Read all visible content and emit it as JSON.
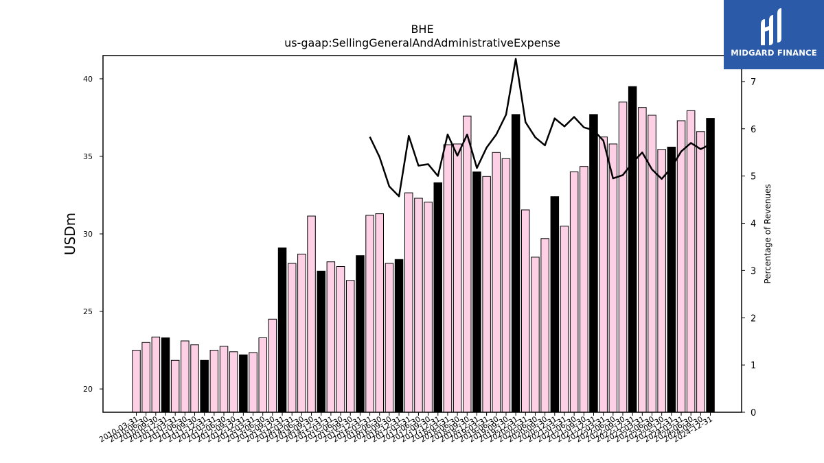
{
  "logo": {
    "text": "MIDGARD FINANCE",
    "icon": "midgard-m-logo-icon",
    "background": "#2b5aa8"
  },
  "chart_data": {
    "type": "bar",
    "title": "BHE",
    "subtitle": "us-gaap:SellingGeneralAndAdministrativeExpense",
    "ylabel": "USDm",
    "y2label": "Percentage of Revenues",
    "ylim": [
      18.5,
      41.5
    ],
    "y2lim": [
      0,
      7.55
    ],
    "yticks": [
      20,
      25,
      30,
      35,
      40
    ],
    "y2ticks": [
      0,
      1,
      2,
      3,
      4,
      5,
      6,
      7
    ],
    "grid": false,
    "colors": {
      "quarter_bar": "#fdd0e6",
      "annual_bar": "#000000",
      "line": "#000000"
    },
    "categories": [
      "2010-03-31",
      "2010-06-30",
      "2010-09-30",
      "2010-12-31",
      "2011-03-31",
      "2011-06-30",
      "2011-09-30",
      "2011-12-31",
      "2012-03-31",
      "2012-06-30",
      "2012-09-30",
      "2012-12-31",
      "2013-03-31",
      "2013-06-30",
      "2013-09-30",
      "2013-12-31",
      "2014-03-31",
      "2014-06-30",
      "2014-09-30",
      "2014-12-31",
      "2015-03-31",
      "2015-06-30",
      "2015-09-30",
      "2015-12-31",
      "2016-03-31",
      "2016-06-30",
      "2016-09-30",
      "2016-12-31",
      "2017-03-31",
      "2017-06-30",
      "2017-09-30",
      "2017-12-31",
      "2018-03-31",
      "2018-06-30",
      "2018-09-30",
      "2018-12-31",
      "2019-03-31",
      "2019-06-30",
      "2019-09-30",
      "2019-12-31",
      "2020-03-31",
      "2020-06-30",
      "2020-09-30",
      "2020-12-31",
      "2021-03-31",
      "2021-06-30",
      "2021-09-30",
      "2021-12-31",
      "2022-03-31",
      "2022-06-30",
      "2022-09-30",
      "2022-12-31",
      "2023-03-31",
      "2023-06-30",
      "2023-09-30",
      "2023-12-31",
      "2024-03-31",
      "2024-06-30",
      "2024-09-30",
      "2024-12-31"
    ],
    "series": [
      {
        "values": [
          22.5,
          23.0,
          23.35,
          23.3,
          21.85,
          23.1,
          22.85,
          21.85,
          22.5,
          22.75,
          22.4,
          22.2,
          22.35,
          23.3,
          24.5,
          29.1,
          28.1,
          28.7,
          31.15,
          27.6,
          28.2,
          27.9,
          27.0,
          28.6,
          31.2,
          31.3,
          28.1,
          28.35,
          32.65,
          32.3,
          32.05,
          33.3,
          35.75,
          35.8,
          37.6,
          34.0,
          33.7,
          35.25,
          34.85,
          37.7,
          31.55,
          28.5,
          29.7,
          32.4,
          30.5,
          34.0,
          34.35,
          37.7,
          36.25,
          35.8,
          38.5,
          39.5,
          38.15,
          37.65,
          35.45,
          35.6,
          37.3,
          37.95,
          36.6,
          37.45
        ]
      },
      {
        "values": [
          null,
          null,
          null,
          null,
          null,
          null,
          null,
          null,
          null,
          null,
          null,
          null,
          null,
          null,
          null,
          null,
          null,
          null,
          null,
          null,
          null,
          null,
          null,
          null,
          5.83,
          5.4,
          4.78,
          4.57,
          5.85,
          5.22,
          5.25,
          5.0,
          5.88,
          5.43,
          5.88,
          5.17,
          5.6,
          5.88,
          6.3,
          7.48,
          6.14,
          5.82,
          5.65,
          6.22,
          6.05,
          6.25,
          6.03,
          5.97,
          5.75,
          4.95,
          5.02,
          5.28,
          5.5,
          5.14,
          4.94,
          5.18,
          5.52,
          5.7,
          5.57,
          5.67
        ]
      }
    ]
  }
}
